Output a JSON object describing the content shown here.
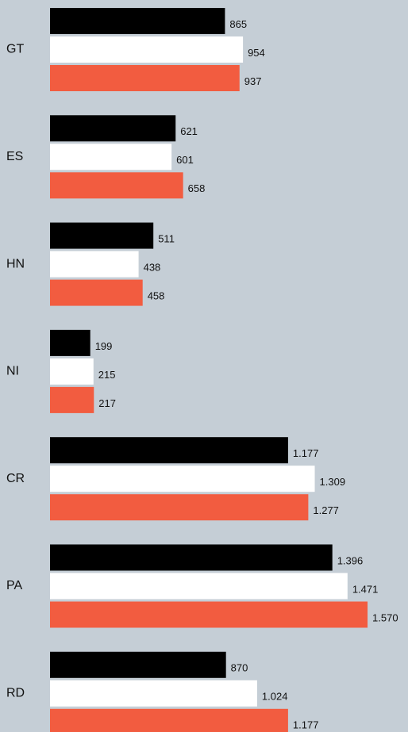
{
  "chart_data": {
    "type": "bar",
    "orientation": "horizontal",
    "categories": [
      "GT",
      "ES",
      "HN",
      "NI",
      "CR",
      "PA",
      "RD"
    ],
    "series": [
      {
        "color": "#000000",
        "values": [
          865,
          621,
          511,
          199,
          1177,
          1396,
          870
        ],
        "value_labels": [
          "865",
          "621",
          "511",
          "199",
          "1.177",
          "1.396",
          "870"
        ]
      },
      {
        "color": "#ffffff",
        "values": [
          954,
          601,
          438,
          215,
          1309,
          1471,
          1024
        ],
        "value_labels": [
          "954",
          "601",
          "438",
          "215",
          "1.309",
          "1.471",
          "1.024"
        ]
      },
      {
        "color": "#f25c40",
        "values": [
          937,
          658,
          458,
          217,
          1277,
          1570,
          1177
        ],
        "value_labels": [
          "937",
          "658",
          "458",
          "217",
          "1.277",
          "1.570",
          "1.177"
        ]
      }
    ],
    "xlim": [
      0,
      1770
    ]
  }
}
